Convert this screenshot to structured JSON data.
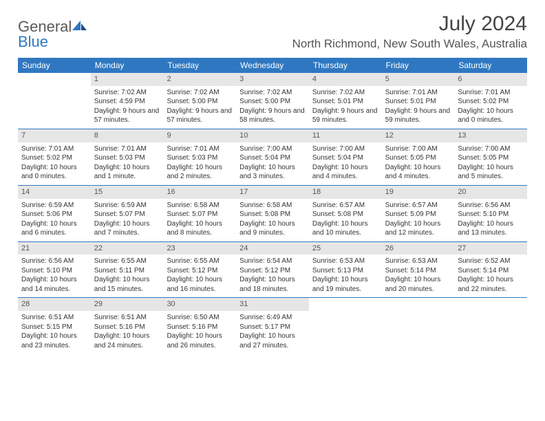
{
  "logo": {
    "word1": "General",
    "word2": "Blue"
  },
  "title": "July 2024",
  "location": "North Richmond, New South Wales, Australia",
  "colors": {
    "accent": "#2f78c1",
    "header_text": "#ffffff",
    "daynum_bg": "#e6e6e6",
    "text": "#333333"
  },
  "dayNames": [
    "Sunday",
    "Monday",
    "Tuesday",
    "Wednesday",
    "Thursday",
    "Friday",
    "Saturday"
  ],
  "weeks": [
    [
      {
        "n": "",
        "sr": "",
        "ss": "",
        "dl": ""
      },
      {
        "n": "1",
        "sr": "Sunrise: 7:02 AM",
        "ss": "Sunset: 4:59 PM",
        "dl": "Daylight: 9 hours and 57 minutes."
      },
      {
        "n": "2",
        "sr": "Sunrise: 7:02 AM",
        "ss": "Sunset: 5:00 PM",
        "dl": "Daylight: 9 hours and 57 minutes."
      },
      {
        "n": "3",
        "sr": "Sunrise: 7:02 AM",
        "ss": "Sunset: 5:00 PM",
        "dl": "Daylight: 9 hours and 58 minutes."
      },
      {
        "n": "4",
        "sr": "Sunrise: 7:02 AM",
        "ss": "Sunset: 5:01 PM",
        "dl": "Daylight: 9 hours and 59 minutes."
      },
      {
        "n": "5",
        "sr": "Sunrise: 7:01 AM",
        "ss": "Sunset: 5:01 PM",
        "dl": "Daylight: 9 hours and 59 minutes."
      },
      {
        "n": "6",
        "sr": "Sunrise: 7:01 AM",
        "ss": "Sunset: 5:02 PM",
        "dl": "Daylight: 10 hours and 0 minutes."
      }
    ],
    [
      {
        "n": "7",
        "sr": "Sunrise: 7:01 AM",
        "ss": "Sunset: 5:02 PM",
        "dl": "Daylight: 10 hours and 0 minutes."
      },
      {
        "n": "8",
        "sr": "Sunrise: 7:01 AM",
        "ss": "Sunset: 5:03 PM",
        "dl": "Daylight: 10 hours and 1 minute."
      },
      {
        "n": "9",
        "sr": "Sunrise: 7:01 AM",
        "ss": "Sunset: 5:03 PM",
        "dl": "Daylight: 10 hours and 2 minutes."
      },
      {
        "n": "10",
        "sr": "Sunrise: 7:00 AM",
        "ss": "Sunset: 5:04 PM",
        "dl": "Daylight: 10 hours and 3 minutes."
      },
      {
        "n": "11",
        "sr": "Sunrise: 7:00 AM",
        "ss": "Sunset: 5:04 PM",
        "dl": "Daylight: 10 hours and 4 minutes."
      },
      {
        "n": "12",
        "sr": "Sunrise: 7:00 AM",
        "ss": "Sunset: 5:05 PM",
        "dl": "Daylight: 10 hours and 4 minutes."
      },
      {
        "n": "13",
        "sr": "Sunrise: 7:00 AM",
        "ss": "Sunset: 5:05 PM",
        "dl": "Daylight: 10 hours and 5 minutes."
      }
    ],
    [
      {
        "n": "14",
        "sr": "Sunrise: 6:59 AM",
        "ss": "Sunset: 5:06 PM",
        "dl": "Daylight: 10 hours and 6 minutes."
      },
      {
        "n": "15",
        "sr": "Sunrise: 6:59 AM",
        "ss": "Sunset: 5:07 PM",
        "dl": "Daylight: 10 hours and 7 minutes."
      },
      {
        "n": "16",
        "sr": "Sunrise: 6:58 AM",
        "ss": "Sunset: 5:07 PM",
        "dl": "Daylight: 10 hours and 8 minutes."
      },
      {
        "n": "17",
        "sr": "Sunrise: 6:58 AM",
        "ss": "Sunset: 5:08 PM",
        "dl": "Daylight: 10 hours and 9 minutes."
      },
      {
        "n": "18",
        "sr": "Sunrise: 6:57 AM",
        "ss": "Sunset: 5:08 PM",
        "dl": "Daylight: 10 hours and 10 minutes."
      },
      {
        "n": "19",
        "sr": "Sunrise: 6:57 AM",
        "ss": "Sunset: 5:09 PM",
        "dl": "Daylight: 10 hours and 12 minutes."
      },
      {
        "n": "20",
        "sr": "Sunrise: 6:56 AM",
        "ss": "Sunset: 5:10 PM",
        "dl": "Daylight: 10 hours and 13 minutes."
      }
    ],
    [
      {
        "n": "21",
        "sr": "Sunrise: 6:56 AM",
        "ss": "Sunset: 5:10 PM",
        "dl": "Daylight: 10 hours and 14 minutes."
      },
      {
        "n": "22",
        "sr": "Sunrise: 6:55 AM",
        "ss": "Sunset: 5:11 PM",
        "dl": "Daylight: 10 hours and 15 minutes."
      },
      {
        "n": "23",
        "sr": "Sunrise: 6:55 AM",
        "ss": "Sunset: 5:12 PM",
        "dl": "Daylight: 10 hours and 16 minutes."
      },
      {
        "n": "24",
        "sr": "Sunrise: 6:54 AM",
        "ss": "Sunset: 5:12 PM",
        "dl": "Daylight: 10 hours and 18 minutes."
      },
      {
        "n": "25",
        "sr": "Sunrise: 6:53 AM",
        "ss": "Sunset: 5:13 PM",
        "dl": "Daylight: 10 hours and 19 minutes."
      },
      {
        "n": "26",
        "sr": "Sunrise: 6:53 AM",
        "ss": "Sunset: 5:14 PM",
        "dl": "Daylight: 10 hours and 20 minutes."
      },
      {
        "n": "27",
        "sr": "Sunrise: 6:52 AM",
        "ss": "Sunset: 5:14 PM",
        "dl": "Daylight: 10 hours and 22 minutes."
      }
    ],
    [
      {
        "n": "28",
        "sr": "Sunrise: 6:51 AM",
        "ss": "Sunset: 5:15 PM",
        "dl": "Daylight: 10 hours and 23 minutes."
      },
      {
        "n": "29",
        "sr": "Sunrise: 6:51 AM",
        "ss": "Sunset: 5:16 PM",
        "dl": "Daylight: 10 hours and 24 minutes."
      },
      {
        "n": "30",
        "sr": "Sunrise: 6:50 AM",
        "ss": "Sunset: 5:16 PM",
        "dl": "Daylight: 10 hours and 26 minutes."
      },
      {
        "n": "31",
        "sr": "Sunrise: 6:49 AM",
        "ss": "Sunset: 5:17 PM",
        "dl": "Daylight: 10 hours and 27 minutes."
      },
      {
        "n": "",
        "sr": "",
        "ss": "",
        "dl": ""
      },
      {
        "n": "",
        "sr": "",
        "ss": "",
        "dl": ""
      },
      {
        "n": "",
        "sr": "",
        "ss": "",
        "dl": ""
      }
    ]
  ]
}
